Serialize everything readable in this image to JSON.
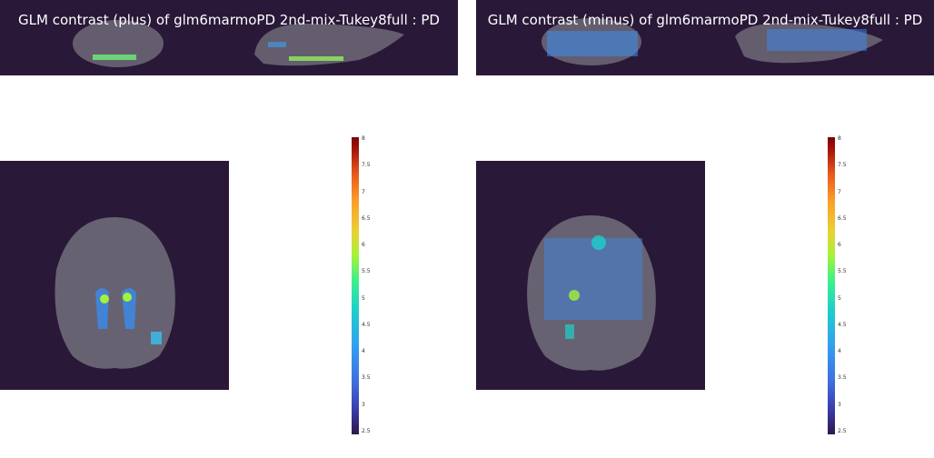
{
  "left": {
    "title": "GLM contrast (plus) of glm6marmoPD 2nd-mix-Tukey8full : PD"
  },
  "right": {
    "title": "GLM contrast (minus) of glm6marmoPD 2nd-mix-Tukey8full : PD"
  },
  "colorbar": {
    "ticks": [
      "8",
      "7.5",
      "7",
      "6.5",
      "6",
      "5.5",
      "5",
      "4.5",
      "4",
      "3.5",
      "3",
      "2.5"
    ],
    "min": 2.5,
    "max": 8
  },
  "colors": {
    "background": "#2a1838",
    "brain": "#6e6a78"
  }
}
